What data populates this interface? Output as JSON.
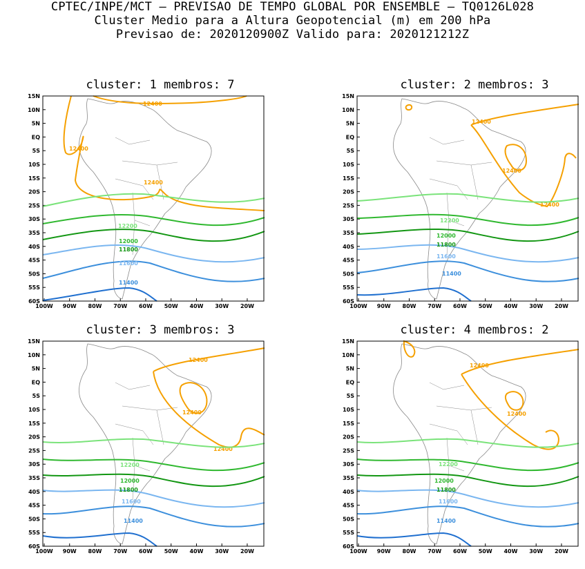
{
  "header": {
    "line1": "CPTEC/INPE/MCT – PREVISAO DE TEMPO GLOBAL POR ENSEMBLE – TQ0126L028",
    "line2": "Cluster Medio para a Altura Geopotencial (m) em 200 hPa",
    "line3": "Previsao de: 2020120900Z   Valido para: 2020121212Z"
  },
  "axes": {
    "lat_labels": [
      "15N",
      "10N",
      "5N",
      "EQ",
      "5S",
      "10S",
      "15S",
      "20S",
      "25S",
      "30S",
      "35S",
      "40S",
      "45S",
      "50S",
      "55S",
      "60S"
    ],
    "lon_labels": [
      "100W",
      "90W",
      "80W",
      "70W",
      "60W",
      "50W",
      "40W",
      "30W",
      "20W"
    ]
  },
  "colors": {
    "c12400": "#f5a000",
    "c12200": "#7ae37a",
    "c12000": "#2fb82f",
    "c11800": "#129612",
    "c11600": "#7ab6f0",
    "c11400": "#3c8fdc",
    "c11200": "#1f6fcf",
    "coast": "#888888"
  },
  "panels": [
    {
      "title": "cluster: 1   membros: 7",
      "labels": {
        "l12400a": "12400",
        "l12400b": "12400",
        "l12400c": "12400",
        "l12200": "12200",
        "l12000": "12000",
        "l11800": "11800",
        "l11600": "11600",
        "l11400": "11400"
      }
    },
    {
      "title": "cluster: 2   membros: 3",
      "labels": {
        "l12400a": "12400",
        "l12400b": "12400",
        "l12400c": "12400",
        "l12200": "12200",
        "l12000": "12000",
        "l11800": "11800",
        "l11600": "11600",
        "l11400": "11400"
      }
    },
    {
      "title": "cluster: 3   membros: 3",
      "labels": {
        "l12400a": "12400",
        "l12400b": "12400",
        "l12400c": "12400",
        "l12200": "12200",
        "l12000": "12000",
        "l11800": "11800",
        "l11600": "11600",
        "l11400": "11400"
      }
    },
    {
      "title": "cluster: 4   membros: 2",
      "labels": {
        "l12400a": "12400",
        "l12400b": "12400",
        "l12200": "12200",
        "l12000": "12000",
        "l11800": "11800",
        "l11600": "11600",
        "l11400": "11400"
      }
    }
  ]
}
